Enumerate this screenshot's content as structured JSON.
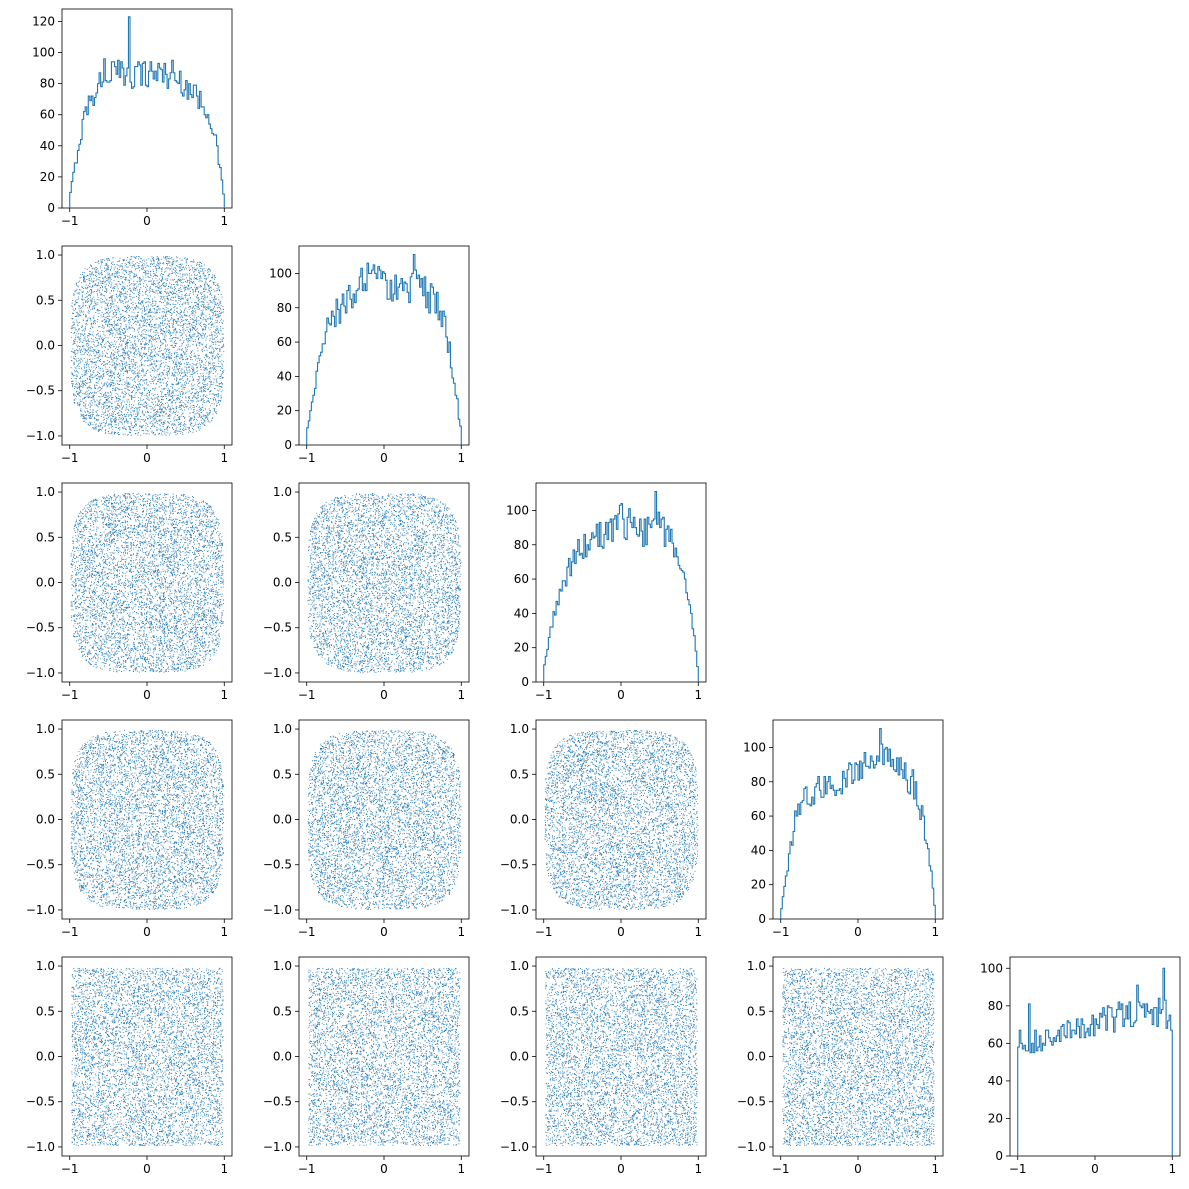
{
  "colors": {
    "series": "#1f77b4",
    "axes": "#000000",
    "background": "#ffffff"
  },
  "chart_data": {
    "type": "corner-plot",
    "dimensions": 5,
    "layout": "lower-triangle",
    "diagonal_type": "histogram (step)",
    "off_diagonal_type": "scatter",
    "title": "",
    "xlim": [
      -1.1,
      1.1
    ],
    "scatter_ylim": [
      -1.1,
      1.1
    ],
    "ticks_x": [
      -1,
      0,
      1
    ],
    "ticks_scatter_y": [
      -1.0,
      -0.5,
      0.0,
      0.5,
      1.0
    ],
    "tick_labels_x": [
      "−1",
      "0",
      "1"
    ],
    "tick_labels_scatter_y": [
      "−1.0",
      "−0.5",
      "0.0",
      "0.5",
      "1.0"
    ],
    "histogram_bins": 100,
    "scatter_points_per_panel": 6000,
    "histograms": [
      {
        "dimension": 1,
        "ylim": [
          0,
          128
        ],
        "yticks": [
          0,
          20,
          40,
          60,
          80,
          100,
          120
        ],
        "profile_x": [
          -1.0,
          -0.98,
          -0.95,
          -0.9,
          -0.85,
          -0.8,
          -0.7,
          -0.6,
          -0.5,
          -0.4,
          -0.3,
          -0.25,
          -0.2,
          -0.1,
          0.0,
          0.1,
          0.2,
          0.3,
          0.4,
          0.5,
          0.6,
          0.7,
          0.8,
          0.85,
          0.9,
          0.95,
          0.98,
          1.0
        ],
        "profile_y": [
          5,
          12,
          22,
          35,
          48,
          62,
          72,
          82,
          88,
          87,
          85,
          90,
          86,
          88,
          86,
          88,
          87,
          85,
          82,
          80,
          74,
          68,
          62,
          52,
          40,
          25,
          12,
          5
        ],
        "spikes": [
          {
            "x": -0.23,
            "y": 123
          },
          {
            "x": 0.32,
            "y": 95
          },
          {
            "x": -0.55,
            "y": 96
          }
        ]
      },
      {
        "dimension": 2,
        "ylim": [
          0,
          116
        ],
        "yticks": [
          0,
          20,
          40,
          60,
          80,
          100
        ],
        "profile_x": [
          -1.0,
          -0.98,
          -0.95,
          -0.9,
          -0.85,
          -0.8,
          -0.7,
          -0.6,
          -0.5,
          -0.4,
          -0.3,
          -0.2,
          -0.1,
          0.0,
          0.1,
          0.2,
          0.3,
          0.4,
          0.5,
          0.6,
          0.7,
          0.8,
          0.85,
          0.9,
          0.95,
          0.98,
          1.0
        ],
        "profile_y": [
          5,
          12,
          20,
          32,
          48,
          62,
          72,
          78,
          82,
          88,
          94,
          96,
          96,
          94,
          92,
          90,
          92,
          94,
          90,
          86,
          80,
          66,
          55,
          40,
          28,
          12,
          5
        ],
        "spikes": [
          {
            "x": 0.38,
            "y": 111
          },
          {
            "x": -0.15,
            "y": 102
          }
        ]
      },
      {
        "dimension": 3,
        "ylim": [
          0,
          116
        ],
        "yticks": [
          0,
          20,
          40,
          60,
          80,
          100
        ],
        "profile_x": [
          -1.0,
          -0.98,
          -0.95,
          -0.9,
          -0.85,
          -0.8,
          -0.7,
          -0.6,
          -0.5,
          -0.4,
          -0.3,
          -0.2,
          -0.1,
          0.0,
          0.1,
          0.2,
          0.3,
          0.4,
          0.5,
          0.6,
          0.7,
          0.8,
          0.85,
          0.9,
          0.95,
          0.98,
          1.0
        ],
        "profile_y": [
          5,
          10,
          20,
          34,
          40,
          52,
          62,
          72,
          78,
          82,
          85,
          86,
          90,
          94,
          92,
          88,
          86,
          88,
          90,
          86,
          76,
          66,
          58,
          44,
          26,
          12,
          5
        ],
        "spikes": [
          {
            "x": 0.45,
            "y": 111
          },
          {
            "x": 0.0,
            "y": 104
          }
        ]
      },
      {
        "dimension": 4,
        "ylim": [
          0,
          116
        ],
        "yticks": [
          0,
          20,
          40,
          60,
          80,
          100
        ],
        "profile_x": [
          -1.0,
          -0.98,
          -0.95,
          -0.9,
          -0.85,
          -0.8,
          -0.7,
          -0.6,
          -0.5,
          -0.4,
          -0.3,
          -0.2,
          -0.1,
          0.0,
          0.1,
          0.2,
          0.3,
          0.4,
          0.5,
          0.6,
          0.7,
          0.8,
          0.85,
          0.9,
          0.95,
          0.98,
          1.0
        ],
        "profile_y": [
          5,
          10,
          20,
          32,
          48,
          62,
          70,
          74,
          76,
          78,
          80,
          82,
          84,
          86,
          90,
          94,
          96,
          92,
          88,
          84,
          80,
          66,
          55,
          40,
          28,
          12,
          5
        ],
        "spikes": [
          {
            "x": 0.28,
            "y": 111
          },
          {
            "x": 0.55,
            "y": 94
          }
        ]
      },
      {
        "dimension": 5,
        "ylim": [
          0,
          106
        ],
        "yticks": [
          0,
          20,
          40,
          60,
          80,
          100
        ],
        "profile_x": [
          -1.0,
          -0.99,
          -0.9,
          -0.8,
          -0.7,
          -0.6,
          -0.5,
          -0.4,
          -0.3,
          -0.2,
          -0.1,
          0.0,
          0.1,
          0.2,
          0.3,
          0.4,
          0.5,
          0.6,
          0.7,
          0.8,
          0.9,
          0.98,
          0.99,
          1.0
        ],
        "profile_y": [
          0,
          62,
          60,
          62,
          60,
          62,
          63,
          65,
          66,
          68,
          70,
          71,
          72,
          73,
          74,
          75,
          75,
          76,
          76,
          77,
          77,
          75,
          70,
          0
        ],
        "spikes": [
          {
            "x": 0.88,
            "y": 100
          },
          {
            "x": -0.85,
            "y": 81
          },
          {
            "x": 0.55,
            "y": 91
          }
        ]
      }
    ],
    "scatter_panels": [
      {
        "row": 2,
        "col": 1,
        "x_dimension": 1,
        "y_dimension": 2,
        "support": "disk-like"
      },
      {
        "row": 3,
        "col": 1,
        "x_dimension": 1,
        "y_dimension": 3,
        "support": "disk-like"
      },
      {
        "row": 3,
        "col": 2,
        "x_dimension": 2,
        "y_dimension": 3,
        "support": "disk-like"
      },
      {
        "row": 4,
        "col": 1,
        "x_dimension": 1,
        "y_dimension": 4,
        "support": "disk-like"
      },
      {
        "row": 4,
        "col": 2,
        "x_dimension": 2,
        "y_dimension": 4,
        "support": "disk-like"
      },
      {
        "row": 4,
        "col": 3,
        "x_dimension": 3,
        "y_dimension": 4,
        "support": "disk-like"
      },
      {
        "row": 5,
        "col": 1,
        "x_dimension": 1,
        "y_dimension": 5,
        "support": "square"
      },
      {
        "row": 5,
        "col": 2,
        "x_dimension": 2,
        "y_dimension": 5,
        "support": "square"
      },
      {
        "row": 5,
        "col": 3,
        "x_dimension": 3,
        "y_dimension": 5,
        "support": "square"
      },
      {
        "row": 5,
        "col": 4,
        "x_dimension": 4,
        "y_dimension": 5,
        "support": "square"
      }
    ]
  }
}
